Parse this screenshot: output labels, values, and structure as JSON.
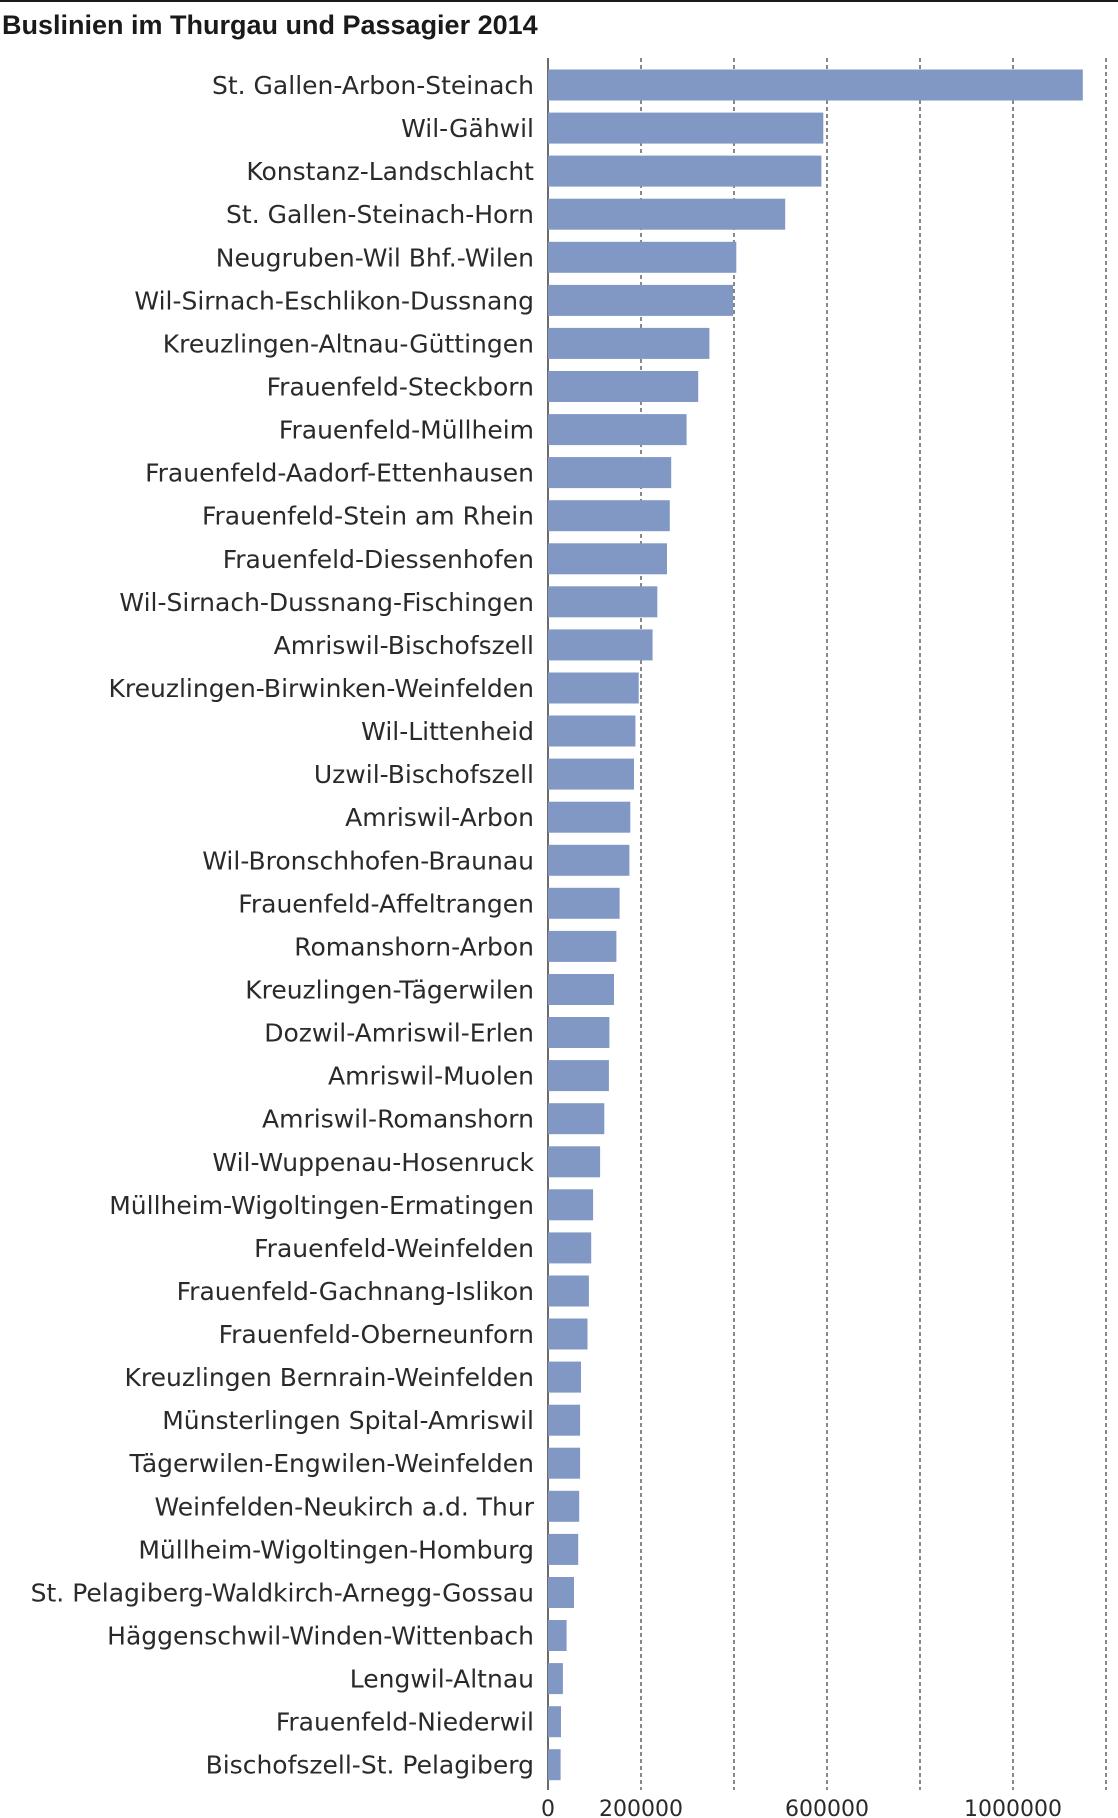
{
  "chart_data": {
    "type": "bar",
    "orientation": "horizontal",
    "title": "Buslinien im Thurgau und Passagier 2014",
    "xlabel": "",
    "ylabel": "",
    "xlim": [
      0,
      1200000
    ],
    "grid": true,
    "bar_color": "#8197c4",
    "categories": [
      "St. Gallen-Arbon-Steinach",
      "Wil-Gähwil",
      "Konstanz-Landschlacht",
      "St. Gallen-Steinach-Horn",
      "Neugruben-Wil Bhf.-Wilen",
      "Wil-Sirnach-Eschlikon-Dussnang",
      "Kreuzlingen-Altnau-Güttingen",
      "Frauenfeld-Steckborn",
      "Frauenfeld-Müllheim",
      "Frauenfeld-Aadorf-Ettenhausen",
      "Frauenfeld-Stein am Rhein",
      "Frauenfeld-Diessenhofen",
      "Wil-Sirnach-Dussnang-Fischingen",
      "Amriswil-Bischofszell",
      "Kreuzlingen-Birwinken-Weinfelden",
      "Wil-Littenheid",
      "Uzwil-Bischofszell",
      "Amriswil-Arbon",
      "Wil-Bronschhofen-Braunau",
      "Frauenfeld-Affeltrangen",
      "Romanshorn-Arbon",
      "Kreuzlingen-Tägerwilen",
      "Dozwil-Amriswil-Erlen",
      "Amriswil-Muolen",
      "Amriswil-Romanshorn",
      "Wil-Wuppenau-Hosenruck",
      "Müllheim-Wigoltingen-Ermatingen",
      "Frauenfeld-Weinfelden",
      "Frauenfeld-Gachnang-Islikon",
      "Frauenfeld-Oberneunforn",
      "Kreuzlingen Bernrain-Weinfelden",
      "Münsterlingen Spital-Amriswil",
      "Tägerwilen-Engwilen-Weinfelden",
      "Weinfelden-Neukirch a.d. Thur",
      "Müllheim-Wigoltingen-Homburg",
      "St. Pelagiberg-Waldkirch-Arnegg-Gossau",
      "Häggenschwil-Winden-Wittenbach",
      "Lengwil-Altnau",
      "Frauenfeld-Niederwil",
      "Bischofszell-St. Pelagiberg"
    ],
    "values": [
      1150000,
      592000,
      588000,
      510000,
      405000,
      398000,
      347000,
      323000,
      298000,
      265000,
      262000,
      256000,
      235000,
      225000,
      195000,
      188000,
      185000,
      177000,
      175000,
      154000,
      147000,
      142000,
      132000,
      131000,
      121000,
      112000,
      97000,
      93000,
      88000,
      85000,
      71000,
      69000,
      69000,
      67000,
      65000,
      56000,
      40000,
      32000,
      28000,
      27000
    ],
    "ticks": [
      {
        "value": 0,
        "label": "0"
      },
      {
        "value": 200000,
        "label": "200000"
      },
      {
        "value": 400000,
        "label": ""
      },
      {
        "value": 600000,
        "label": "600000"
      },
      {
        "value": 800000,
        "label": ""
      },
      {
        "value": 1000000,
        "label": "1000000"
      },
      {
        "value": 1200000,
        "label": ""
      }
    ]
  }
}
